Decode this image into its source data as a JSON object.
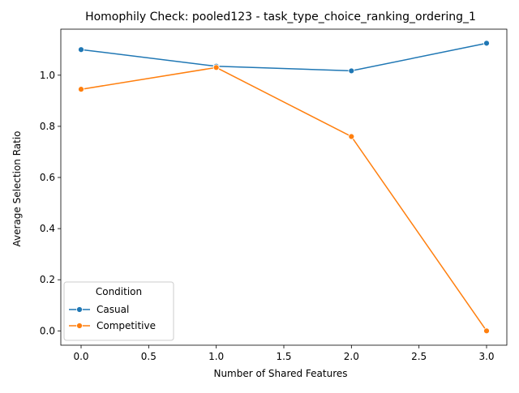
{
  "chart_data": {
    "type": "line",
    "title": "Homophily Check: pooled123 - task_type_choice_ranking_ordering_1",
    "xlabel": "Number of Shared Features",
    "ylabel": "Average Selection Ratio",
    "xlim": [
      -0.15,
      3.15
    ],
    "ylim": [
      -0.056,
      1.18
    ],
    "x_ticks": [
      0.0,
      0.5,
      1.0,
      1.5,
      2.0,
      2.5,
      3.0
    ],
    "x_tick_labels": [
      "0.0",
      "0.5",
      "1.0",
      "1.5",
      "2.0",
      "2.5",
      "3.0"
    ],
    "y_ticks": [
      0.0,
      0.2,
      0.4,
      0.6,
      0.8,
      1.0
    ],
    "y_tick_labels": [
      "0.0",
      "0.2",
      "0.4",
      "0.6",
      "0.8",
      "1.0"
    ],
    "grid": false,
    "legend": {
      "title": "Condition",
      "placement": "lower-left"
    },
    "series": [
      {
        "name": "Casual",
        "color": "#1f77b4",
        "x": [
          0,
          1,
          2,
          3
        ],
        "y": [
          1.1,
          1.035,
          1.017,
          1.125
        ]
      },
      {
        "name": "Competitive",
        "color": "#ff7f0e",
        "x": [
          0,
          1,
          2,
          3
        ],
        "y": [
          0.945,
          1.03,
          0.76,
          0.0
        ]
      }
    ]
  }
}
